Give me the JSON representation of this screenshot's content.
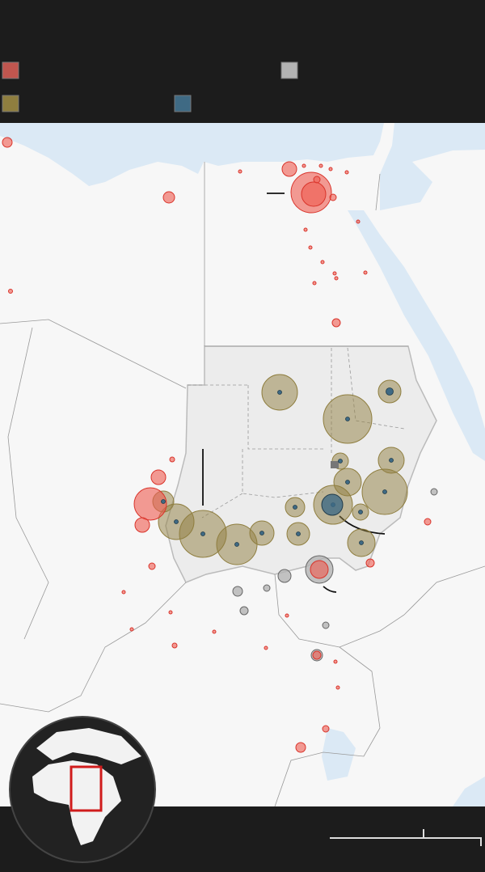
{
  "legend": [
    {
      "color": "#c0564f"
    },
    {
      "color": "#b3b3b3"
    },
    {
      "color": "#8f7e3f"
    },
    {
      "color": "#3f6a84"
    }
  ]
}
